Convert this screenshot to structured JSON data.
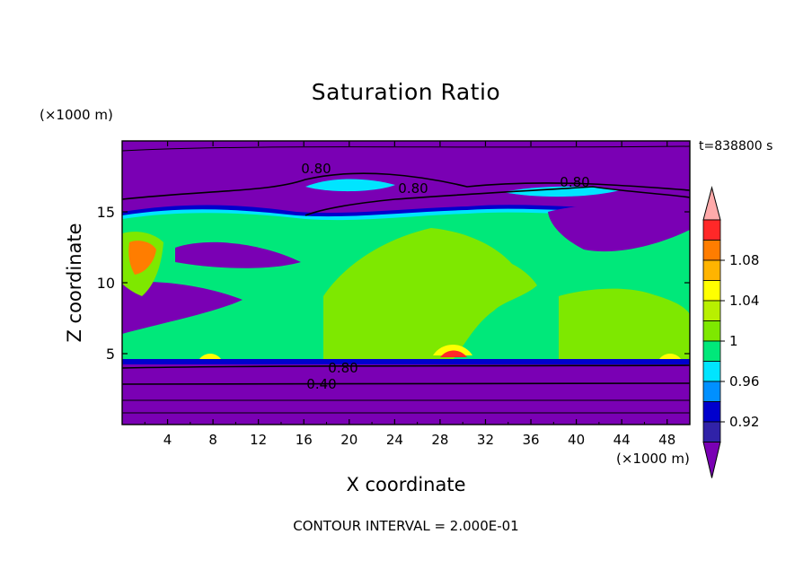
{
  "chart_data": {
    "type": "heatmap",
    "title": "Saturation Ratio",
    "xlabel": "X coordinate",
    "ylabel": "Z coordinate",
    "x_unit": "(×1000 m)",
    "y_unit": "(×1000 m)",
    "time_label": "t=838800 s",
    "footer": "CONTOUR INTERVAL = 2.000E-01",
    "xlim": [
      0,
      50
    ],
    "ylim": [
      0,
      20
    ],
    "x_ticks": [
      "4",
      "8",
      "12",
      "16",
      "20",
      "24",
      "28",
      "32",
      "36",
      "40",
      "44",
      "48"
    ],
    "y_ticks": [
      "5",
      "10",
      "15"
    ],
    "contour_labels": [
      "0.80",
      "0.80",
      "0.80",
      "0.80",
      "0.40"
    ],
    "colorbar": {
      "ticks": [
        "0.92",
        "0.96",
        "1",
        "1.04",
        "1.08"
      ],
      "colors": [
        "#7a00b4",
        "#3022a8",
        "#0000cd",
        "#0090ff",
        "#00e5ff",
        "#00e87a",
        "#7ee800",
        "#b8f000",
        "#ffff00",
        "#ffb400",
        "#ff7d00",
        "#ff2828",
        "#ffaaaa"
      ]
    }
  }
}
